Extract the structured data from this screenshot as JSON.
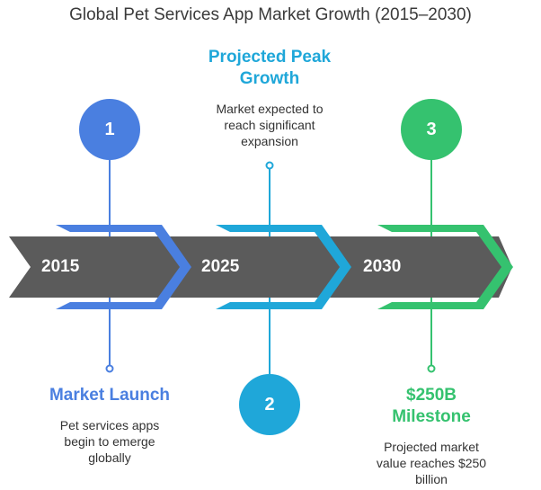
{
  "title": "Global Pet Services App Market Growth (2015–2030)",
  "colors": {
    "blue": "#4A7FE0",
    "cyan": "#1FA7D9",
    "green": "#35C26F",
    "band": "#5b5b5b"
  },
  "milestones": [
    {
      "number": "1",
      "year": "2015",
      "heading": "Market Launch",
      "description": "Pet services apps begin to emerge globally",
      "color": "#4A7FE0"
    },
    {
      "number": "2",
      "year": "2025",
      "heading": "Projected Peak Growth",
      "description": "Market expected to reach significant expansion",
      "color": "#1FA7D9"
    },
    {
      "number": "3",
      "year": "2030",
      "heading": "$250B Milestone",
      "description": "Projected market value reaches $250 billion",
      "color": "#35C26F"
    }
  ]
}
